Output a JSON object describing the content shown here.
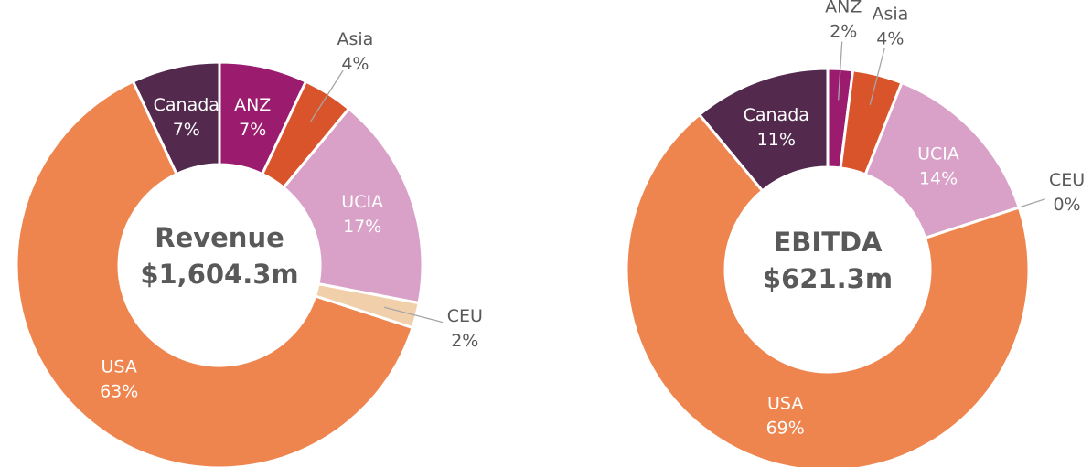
{
  "chart_data": [
    {
      "type": "donut",
      "center_title": "Revenue",
      "center_value": "$1,604.3m",
      "categories": [
        "ANZ",
        "Asia",
        "UCIA",
        "CEU",
        "USA",
        "Canada"
      ],
      "values": [
        7,
        4,
        17,
        2,
        63,
        7
      ],
      "value_labels": [
        "7%",
        "4%",
        "17%",
        "2%",
        "63%",
        "7%"
      ],
      "colors": [
        "#9b1b6e",
        "#d9542b",
        "#d9a0c8",
        "#f0cfaa",
        "#ee854e",
        "#532a4e"
      ]
    },
    {
      "type": "donut",
      "center_title": "EBITDA",
      "center_value": "$621.3m",
      "categories": [
        "ANZ",
        "Asia",
        "UCIA",
        "CEU",
        "USA",
        "Canada"
      ],
      "values": [
        2,
        4,
        14,
        0,
        69,
        11
      ],
      "value_labels": [
        "2%",
        "4%",
        "14%",
        "0%",
        "69%",
        "11%"
      ],
      "colors": [
        "#9b1b6e",
        "#d9542b",
        "#d9a0c8",
        "#f0cfaa",
        "#ee854e",
        "#532a4e"
      ]
    }
  ]
}
